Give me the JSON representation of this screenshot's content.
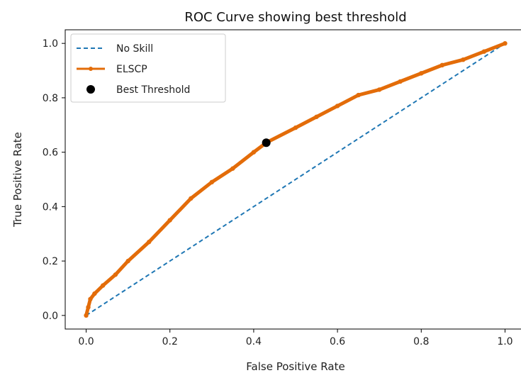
{
  "chart_data": {
    "type": "line",
    "title": "ROC Curve showing best threshold",
    "xlabel": "False Positive Rate",
    "ylabel": "True Positive Rate",
    "xlim": [
      -0.05,
      1.05
    ],
    "ylim": [
      -0.05,
      1.05
    ],
    "x_ticks": [
      "0.0",
      "0.2",
      "0.4",
      "0.6",
      "0.8",
      "1.0"
    ],
    "y_ticks": [
      "0.0",
      "0.2",
      "0.4",
      "0.6",
      "0.8",
      "1.0"
    ],
    "grid": false,
    "legend_position": "top-left",
    "series": [
      {
        "name": "No Skill",
        "style": "dashed",
        "color": "#1f77b4",
        "x": [
          0,
          1
        ],
        "y": [
          0,
          1
        ]
      },
      {
        "name": "ELSCP",
        "style": "line-with-dot-markers",
        "color": "#e36c09",
        "x": [
          0.0,
          0.005,
          0.01,
          0.02,
          0.04,
          0.07,
          0.1,
          0.15,
          0.2,
          0.25,
          0.3,
          0.35,
          0.4,
          0.43,
          0.5,
          0.55,
          0.6,
          0.65,
          0.7,
          0.75,
          0.8,
          0.85,
          0.9,
          0.95,
          1.0
        ],
        "y": [
          0.0,
          0.03,
          0.06,
          0.08,
          0.11,
          0.15,
          0.2,
          0.27,
          0.35,
          0.43,
          0.49,
          0.54,
          0.6,
          0.635,
          0.69,
          0.73,
          0.77,
          0.81,
          0.83,
          0.86,
          0.89,
          0.92,
          0.94,
          0.97,
          1.0
        ]
      }
    ],
    "best_threshold": {
      "name": "Best Threshold",
      "x": 0.43,
      "y": 0.635,
      "color": "#000000"
    }
  }
}
